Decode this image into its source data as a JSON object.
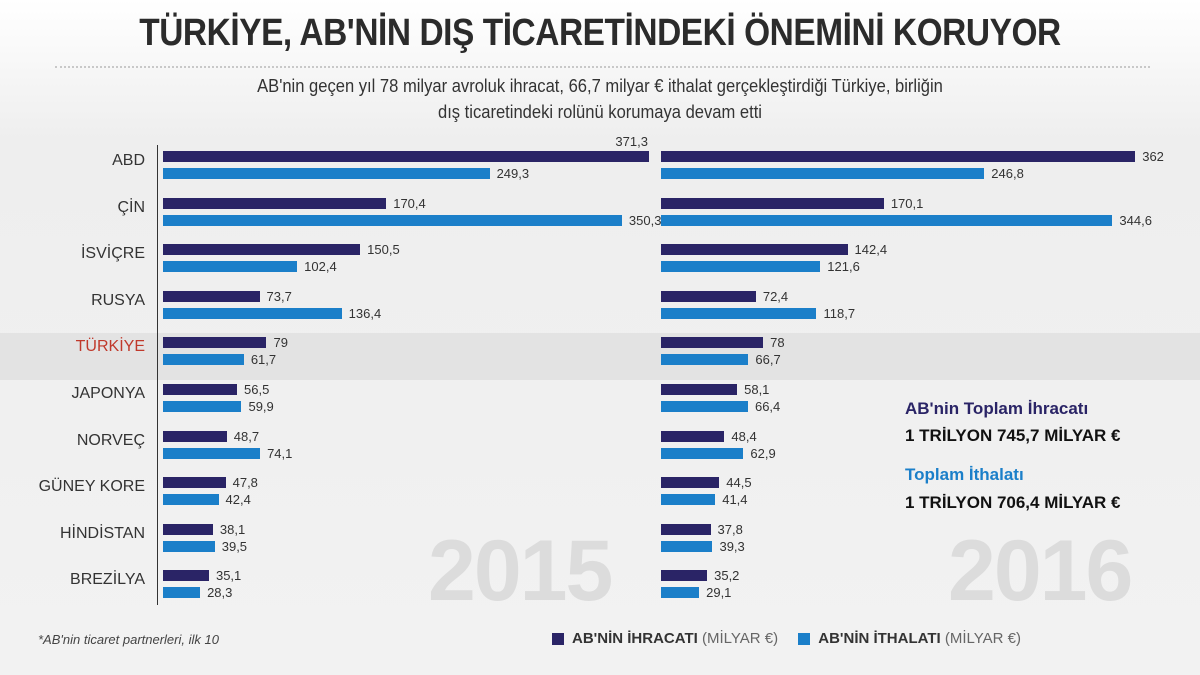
{
  "title": "TÜRKİYE, AB'NİN DIŞ TİCARETİNDEKİ ÖNEMİNİ KORUYOR",
  "subtitle_line1": "AB'nin geçen yıl 78 milyar avroluk ihracat, 66,7 milyar € ithalat gerçekleştirdiği Türkiye, birliğin",
  "subtitle_line2": "dış ticaretindeki rolünü korumaya devam etti",
  "footnote": "*AB'nin ticaret partnerleri, ilk 10",
  "totals": {
    "export_label": "AB'nin Toplam İhracatı",
    "export_value": "1 TRİLYON 745,7 MİLYAR €",
    "import_label": "Toplam İthalatı",
    "import_value": "1 TRİLYON 706,4 MİLYAR €"
  },
  "legend": {
    "export_bold": "AB'NİN İHRACATI",
    "export_unit": "(MİLYAR €)",
    "import_bold": "AB'NİN İTHALATI",
    "import_unit": "(MİLYAR €)"
  },
  "colors": {
    "export": "#2a2466",
    "import": "#1b7fc9",
    "highlight": "#c0392b"
  },
  "chart_data": [
    {
      "type": "bar",
      "orientation": "horizontal",
      "panel_label": "2015",
      "highlight": "TÜRKİYE",
      "categories": [
        "ABD",
        "ÇİN",
        "İSVİÇRE",
        "RUSYA",
        "TÜRKİYE",
        "JAPONYA",
        "NORVEÇ",
        "GÜNEY KORE",
        "HİNDİSTAN",
        "BREZİLYA"
      ],
      "series": [
        {
          "name": "AB'NİN İHRACATI (MİLYAR €)",
          "values": [
            371.3,
            170.4,
            150.5,
            73.7,
            79,
            56.5,
            48.7,
            47.8,
            38.1,
            35.1
          ],
          "labels": [
            "371,3",
            "170,4",
            "150,5",
            "73,7",
            "79",
            "56,5",
            "48,7",
            "47,8",
            "38,1",
            "35,1"
          ]
        },
        {
          "name": "AB'NİN İTHALATI (MİLYAR €)",
          "values": [
            249.3,
            350.3,
            102.4,
            136.4,
            61.7,
            59.9,
            74.1,
            42.4,
            39.5,
            28.3
          ],
          "labels": [
            "249,3",
            "350,3",
            "102,4",
            "136,4",
            "61,7",
            "59,9",
            "74,1",
            "42,4",
            "39,5",
            "28,3"
          ]
        }
      ]
    },
    {
      "type": "bar",
      "orientation": "horizontal",
      "panel_label": "2016",
      "highlight": "TÜRKİYE",
      "categories": [
        "ABD",
        "ÇİN",
        "İSVİÇRE",
        "RUSYA",
        "TÜRKİYE",
        "JAPONYA",
        "NORVEÇ",
        "GÜNEY KORE",
        "HİNDİSTAN",
        "BREZİLYA"
      ],
      "series": [
        {
          "name": "AB'NİN İHRACATI (MİLYAR €)",
          "values": [
            362,
            170.1,
            142.4,
            72.4,
            78,
            58.1,
            48.4,
            44.5,
            37.8,
            35.2
          ],
          "labels": [
            "362",
            "170,1",
            "142,4",
            "72,4",
            "78",
            "58,1",
            "48,4",
            "44,5",
            "37,8",
            "35,2"
          ]
        },
        {
          "name": "AB'NİN İTHALATI (MİLYAR €)",
          "values": [
            246.8,
            344.6,
            121.6,
            118.7,
            66.7,
            66.4,
            62.9,
            41.4,
            39.3,
            29.1
          ],
          "labels": [
            "246,8",
            "344,6",
            "121,6",
            "118,7",
            "66,7",
            "66,4",
            "62,9",
            "41,4",
            "39,3",
            "29,1"
          ]
        }
      ]
    }
  ]
}
